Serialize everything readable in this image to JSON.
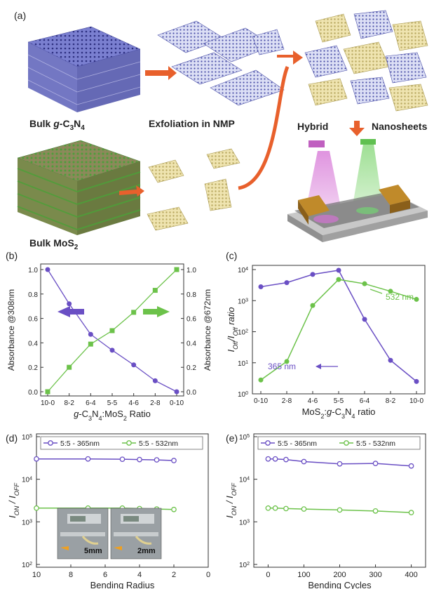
{
  "panel_labels": {
    "a": "(a)",
    "b": "(b)",
    "c": "(c)",
    "d": "(d)",
    "e": "(e)"
  },
  "schematic": {
    "bulk_gcn_prefix": "Bulk ",
    "bulk_gcn_g": "g",
    "bulk_gcn_rest": "-C",
    "bulk_gcn_sub3": "3",
    "bulk_gcn_n": "N",
    "bulk_gcn_sub4": "4",
    "exfoliation": "Exfoliation in NMP",
    "hybrid": "Hybrid",
    "nanosheets": "Nanosheets",
    "bulk_mos2": "Bulk MoS",
    "bulk_mos2_sub": "2",
    "device_label_5mm": "5mm",
    "device_label_2mm": "2mm"
  },
  "colors": {
    "purple": "#6a4fc4",
    "green": "#6cc24a",
    "arrow": "#e8602c",
    "gcn_sheet": "#4a4fa8",
    "mos2_sheet": "#c8c088"
  },
  "chart_data": [
    {
      "id": "b",
      "type": "line",
      "categories": [
        "10-0",
        "8-2",
        "6-4",
        "5-5",
        "4-6",
        "2-8",
        "0-10"
      ],
      "series": [
        {
          "values": [
            1.0,
            0.72,
            0.47,
            0.34,
            0.22,
            0.09,
            0.0
          ],
          "axis": "left",
          "color": "#6a4fc4",
          "marker": "circle"
        },
        {
          "values": [
            0.0,
            0.2,
            0.39,
            0.5,
            0.65,
            0.83,
            1.0
          ],
          "axis": "right",
          "color": "#6cc24a",
          "marker": "square"
        }
      ],
      "xlabel": "g-C3N4:MoS2 Ratio",
      "xlabel_parts": [
        "g",
        "-C",
        "3",
        "N",
        "4",
        ":MoS",
        "2",
        " Ratio"
      ],
      "ylabel_left": "Absorbance @308nm",
      "ylabel_right": "Absorbance @672nm",
      "ylim": [
        0,
        1.0
      ],
      "yticks": [
        "0.0",
        "0.2",
        "0.4",
        "0.6",
        "0.8",
        "1.0"
      ]
    },
    {
      "id": "c",
      "type": "line",
      "log_y": true,
      "categories": [
        "0-10",
        "2-8",
        "4-6",
        "5-5",
        "6-4",
        "8-2",
        "10-0"
      ],
      "series": [
        {
          "name": "365 nm",
          "values": [
            2800,
            3800,
            7000,
            9500,
            250,
            12,
            2.5
          ],
          "color": "#6a4fc4"
        },
        {
          "name": "532 nm",
          "values": [
            2.8,
            11,
            700,
            4800,
            3500,
            2000,
            1100
          ],
          "color": "#6cc24a"
        }
      ],
      "xlabel_parts": [
        "MoS",
        "2",
        ":",
        "g",
        "-C",
        "3",
        "N",
        "4",
        " ratio"
      ],
      "ylabel_parts": [
        "I",
        "Off",
        "/I",
        "Off",
        " ratio"
      ],
      "ylim_exp": [
        0,
        4
      ],
      "ytick_base": "10"
    },
    {
      "id": "d",
      "type": "line",
      "log_y": true,
      "x": [
        10,
        7,
        5,
        4,
        3,
        2
      ],
      "xlim": [
        10,
        0
      ],
      "xticks": [
        "10",
        "8",
        "6",
        "4",
        "2",
        "0"
      ],
      "series": [
        {
          "name": "5:5 - 365nm",
          "values": [
            30000,
            30000,
            29500,
            29000,
            28500,
            27500
          ],
          "color": "#6a4fc4"
        },
        {
          "name": "5:5 - 532nm",
          "values": [
            2100,
            2100,
            2100,
            2050,
            2000,
            1950
          ],
          "color": "#6cc24a"
        }
      ],
      "xlabel": "Bending Radius",
      "ylabel_parts": [
        "I",
        "ON",
        " / I",
        "OFF"
      ],
      "ylim_exp": [
        2,
        5
      ],
      "ytick_base": "10"
    },
    {
      "id": "e",
      "type": "line",
      "log_y": true,
      "x": [
        0,
        20,
        50,
        100,
        200,
        300,
        400
      ],
      "xlim": [
        -40,
        440
      ],
      "xticks": [
        "0",
        "100",
        "200",
        "300",
        "400"
      ],
      "series": [
        {
          "name": "5:5 - 365nm",
          "values": [
            30000,
            30000,
            29000,
            26000,
            23000,
            23500,
            20500
          ],
          "color": "#6a4fc4"
        },
        {
          "name": "5:5 - 532nm",
          "values": [
            2100,
            2100,
            2050,
            2000,
            1900,
            1800,
            1650
          ],
          "color": "#6cc24a"
        }
      ],
      "xlabel": "Bending Cycles",
      "ylabel_parts": [
        "I",
        "ON",
        " / I",
        "OFF"
      ],
      "ylim_exp": [
        2,
        5
      ],
      "ytick_base": "10"
    }
  ]
}
